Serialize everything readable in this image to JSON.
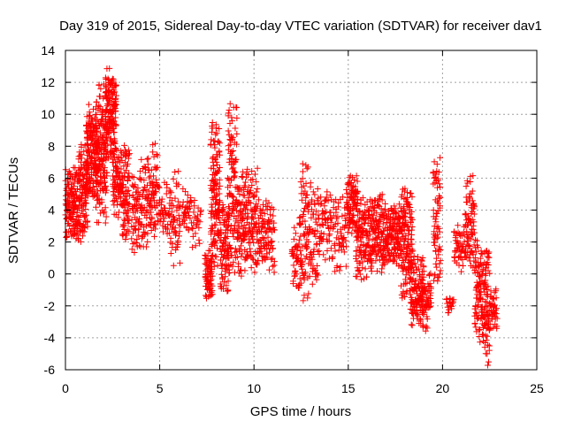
{
  "chart_data": {
    "type": "scatter",
    "title": "Day 319 of 2015, Sidereal Day-to-day VTEC variation (SDTVAR) for receiver dav1",
    "xlabel": "GPS time / hours",
    "ylabel": "SDTVAR / TECUs",
    "xlim": [
      0,
      25
    ],
    "ylim": [
      -6,
      14
    ],
    "xticks": [
      0,
      5,
      10,
      15,
      20,
      25
    ],
    "yticks": [
      -6,
      -4,
      -2,
      0,
      2,
      4,
      6,
      8,
      10,
      12,
      14
    ],
    "grid": true,
    "marker": "+",
    "series": [
      {
        "name": "SDTVAR dav1",
        "color": "#ff0000",
        "segments": [
          {
            "x0": 0.0,
            "x1": 0.3,
            "y_min": 2.0,
            "y_max": 6.6,
            "n": 60
          },
          {
            "x0": 0.3,
            "x1": 0.7,
            "y_min": 1.8,
            "y_max": 6.8,
            "n": 90
          },
          {
            "x0": 0.7,
            "x1": 1.2,
            "y_min": 2.0,
            "y_max": 8.2,
            "n": 120
          },
          {
            "x0": 1.1,
            "x1": 1.7,
            "y_min": 4.5,
            "y_max": 10.8,
            "n": 160
          },
          {
            "x0": 1.6,
            "x1": 2.2,
            "y_min": 3.0,
            "y_max": 12.0,
            "n": 160
          },
          {
            "x0": 2.1,
            "x1": 2.7,
            "y_min": 7.0,
            "y_max": 12.9,
            "n": 160
          },
          {
            "x0": 2.5,
            "x1": 3.0,
            "y_min": 3.5,
            "y_max": 8.0,
            "n": 80
          },
          {
            "x0": 3.0,
            "x1": 3.4,
            "y_min": 2.0,
            "y_max": 8.4,
            "n": 80
          },
          {
            "x0": 3.5,
            "x1": 3.9,
            "y_min": 1.0,
            "y_max": 6.3,
            "n": 50
          },
          {
            "x0": 3.9,
            "x1": 4.4,
            "y_min": 1.5,
            "y_max": 7.5,
            "n": 60
          },
          {
            "x0": 4.4,
            "x1": 4.9,
            "y_min": 1.5,
            "y_max": 8.2,
            "n": 70
          },
          {
            "x0": 4.9,
            "x1": 5.5,
            "y_min": 2.0,
            "y_max": 6.0,
            "n": 40
          },
          {
            "x0": 5.5,
            "x1": 6.1,
            "y_min": 0.5,
            "y_max": 6.5,
            "n": 60
          },
          {
            "x0": 6.2,
            "x1": 6.6,
            "y_min": 2.5,
            "y_max": 5.4,
            "n": 30
          },
          {
            "x0": 6.6,
            "x1": 7.2,
            "y_min": 1.5,
            "y_max": 5.0,
            "n": 30
          },
          {
            "x0": 7.4,
            "x1": 7.8,
            "y_min": -1.8,
            "y_max": 1.5,
            "n": 70
          },
          {
            "x0": 7.7,
            "x1": 8.2,
            "y_min": 0.0,
            "y_max": 10.0,
            "n": 140
          },
          {
            "x0": 8.2,
            "x1": 8.7,
            "y_min": -1.5,
            "y_max": 4.5,
            "n": 90
          },
          {
            "x0": 8.6,
            "x1": 9.1,
            "y_min": -0.5,
            "y_max": 11.0,
            "n": 110
          },
          {
            "x0": 9.1,
            "x1": 9.6,
            "y_min": -0.5,
            "y_max": 6.8,
            "n": 90
          },
          {
            "x0": 9.6,
            "x1": 10.2,
            "y_min": 0.0,
            "y_max": 6.7,
            "n": 90
          },
          {
            "x0": 10.2,
            "x1": 10.8,
            "y_min": 0.5,
            "y_max": 4.8,
            "n": 70
          },
          {
            "x0": 10.8,
            "x1": 11.1,
            "y_min": 0.0,
            "y_max": 4.7,
            "n": 30
          },
          {
            "x0": 12.0,
            "x1": 12.4,
            "y_min": -1.0,
            "y_max": 3.0,
            "n": 40
          },
          {
            "x0": 12.4,
            "x1": 12.9,
            "y_min": -1.8,
            "y_max": 7.2,
            "n": 80
          },
          {
            "x0": 12.9,
            "x1": 13.4,
            "y_min": -1.0,
            "y_max": 6.0,
            "n": 60
          },
          {
            "x0": 13.4,
            "x1": 14.1,
            "y_min": 0.5,
            "y_max": 5.5,
            "n": 60
          },
          {
            "x0": 14.1,
            "x1": 14.9,
            "y_min": 0.0,
            "y_max": 5.0,
            "n": 60
          },
          {
            "x0": 14.9,
            "x1": 15.5,
            "y_min": 2.5,
            "y_max": 6.2,
            "n": 100
          },
          {
            "x0": 15.4,
            "x1": 16.2,
            "y_min": -0.5,
            "y_max": 5.2,
            "n": 130
          },
          {
            "x0": 16.2,
            "x1": 17.0,
            "y_min": 0.0,
            "y_max": 5.0,
            "n": 140
          },
          {
            "x0": 17.0,
            "x1": 17.8,
            "y_min": 0.5,
            "y_max": 4.5,
            "n": 140
          },
          {
            "x0": 17.8,
            "x1": 18.4,
            "y_min": -1.8,
            "y_max": 5.6,
            "n": 140
          },
          {
            "x0": 18.3,
            "x1": 19.0,
            "y_min": -3.5,
            "y_max": 1.5,
            "n": 120
          },
          {
            "x0": 18.9,
            "x1": 19.4,
            "y_min": -3.8,
            "y_max": 0.5,
            "n": 60
          },
          {
            "x0": 19.5,
            "x1": 19.9,
            "y_min": -1.0,
            "y_max": 7.6,
            "n": 70
          },
          {
            "x0": 20.2,
            "x1": 20.6,
            "y_min": -2.5,
            "y_max": -1.5,
            "n": 20
          },
          {
            "x0": 20.6,
            "x1": 21.2,
            "y_min": 0.0,
            "y_max": 3.5,
            "n": 50
          },
          {
            "x0": 21.2,
            "x1": 21.7,
            "y_min": 0.0,
            "y_max": 6.2,
            "n": 80
          },
          {
            "x0": 21.7,
            "x1": 22.2,
            "y_min": -4.5,
            "y_max": 2.5,
            "n": 100
          },
          {
            "x0": 22.2,
            "x1": 22.5,
            "y_min": -5.8,
            "y_max": 2.2,
            "n": 70
          },
          {
            "x0": 22.5,
            "x1": 22.9,
            "y_min": -3.5,
            "y_max": -0.8,
            "n": 40
          }
        ]
      }
    ]
  }
}
